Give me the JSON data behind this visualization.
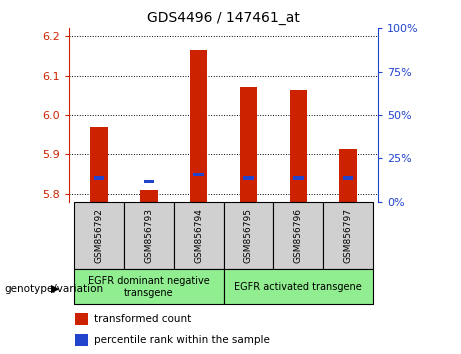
{
  "title": "GDS4496 / 147461_at",
  "samples": [
    "GSM856792",
    "GSM856793",
    "GSM856794",
    "GSM856795",
    "GSM856796",
    "GSM856797"
  ],
  "transformed_count": [
    5.97,
    5.81,
    6.165,
    6.07,
    6.063,
    5.915
  ],
  "percentile_rank": [
    5.836,
    5.827,
    5.845,
    5.836,
    5.836,
    5.836
  ],
  "ylim_left": [
    5.78,
    6.22
  ],
  "ylim_right": [
    0,
    100
  ],
  "yticks_left": [
    5.8,
    5.9,
    6.0,
    6.1,
    6.2
  ],
  "yticks_right": [
    0,
    25,
    50,
    75,
    100
  ],
  "bar_bottom": 5.78,
  "bar_color": "#cc2200",
  "percentile_color": "#2244cc",
  "group1_label": "EGFR dominant negative\ntransgene",
  "group2_label": "EGFR activated transgene",
  "genotype_label": "genotype/variation",
  "legend_items": [
    "transformed count",
    "percentile rank within the sample"
  ],
  "group_bg": "#90ee90",
  "sample_bg": "#d0d0d0",
  "left_axis_color": "#cc2200",
  "right_axis_color": "#2244cc",
  "bar_width": 0.35
}
